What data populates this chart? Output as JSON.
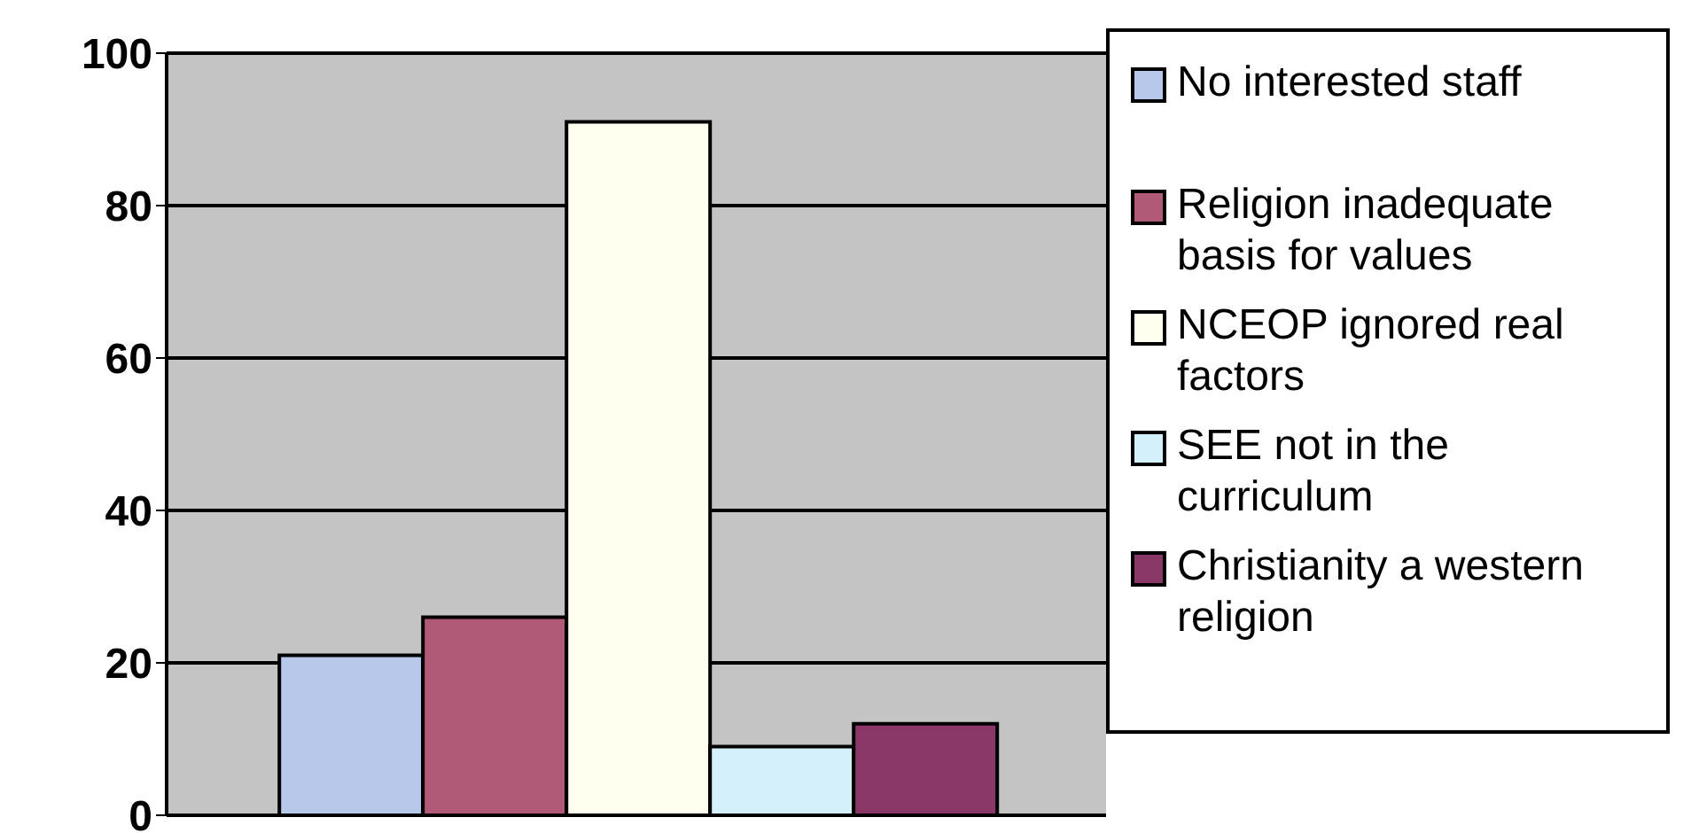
{
  "chart_data": {
    "type": "bar",
    "categories": [
      null
    ],
    "series": [
      {
        "name": "No interested staff",
        "color": "#b8c8ea",
        "values": [
          21
        ]
      },
      {
        "name": "Religion inadequate basis for values",
        "color": "#b05a78",
        "values": [
          26
        ]
      },
      {
        "name": "NCEOP ignored real factors",
        "color": "#fffff0",
        "values": [
          91
        ]
      },
      {
        "name": "SEE  not in the curriculum",
        "color": "#d4f0fa",
        "values": [
          9
        ]
      },
      {
        "name": "Christianity a western religion",
        "color": "#8a3868",
        "values": [
          12
        ]
      }
    ],
    "ylim": [
      0,
      100
    ],
    "yticks": [
      0,
      20,
      40,
      60,
      80,
      100
    ],
    "grid": "y",
    "legend": "right"
  }
}
